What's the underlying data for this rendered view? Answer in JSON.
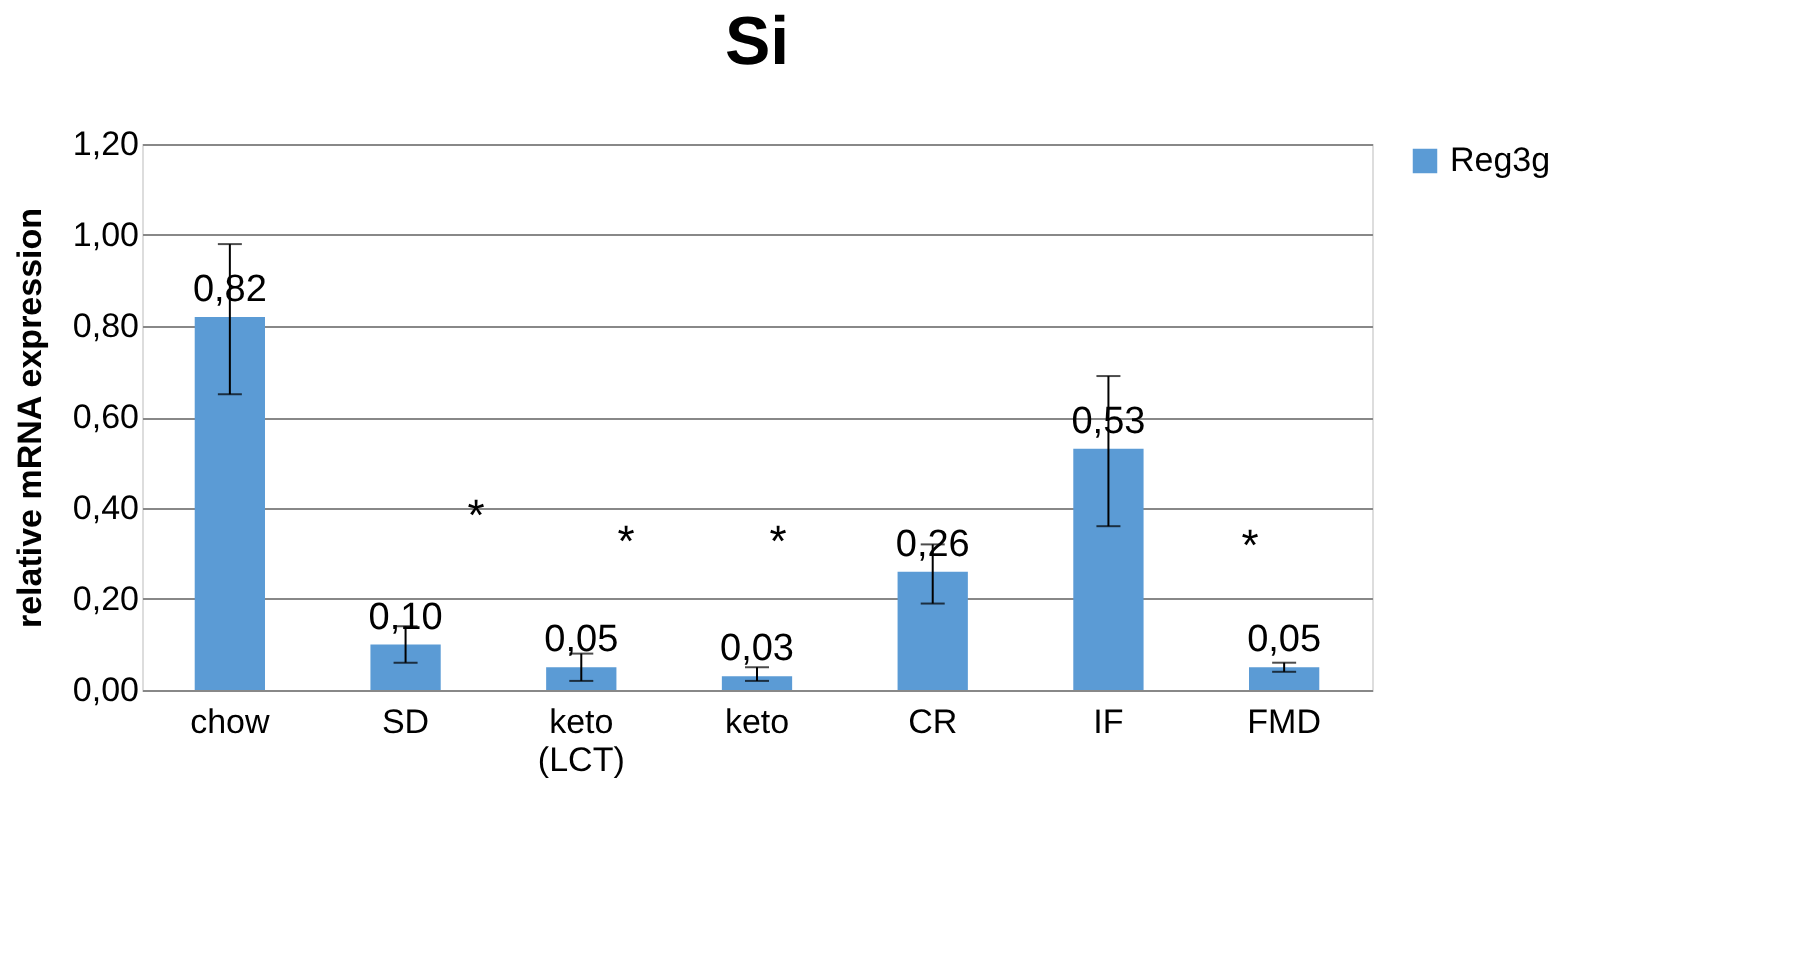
{
  "chart_data": {
    "type": "bar",
    "title": "Si",
    "ylabel": "relative mRNA expression",
    "categories": [
      "chow",
      "SD",
      "keto\n(LCT)",
      "keto",
      "CR",
      "IF",
      "FMD"
    ],
    "series": [
      {
        "name": "Reg3g",
        "color": "#5b9bd5",
        "values": [
          0.82,
          0.1,
          0.05,
          0.03,
          0.26,
          0.53,
          0.05
        ],
        "errors": [
          [
            0.65,
            0.98
          ],
          [
            0.06,
            0.14
          ],
          [
            0.02,
            0.08
          ],
          [
            0.02,
            0.05
          ],
          [
            0.19,
            0.32
          ],
          [
            0.36,
            0.69
          ],
          [
            0.04,
            0.06
          ]
        ],
        "value_labels": [
          "0,82",
          "0,10",
          "0,05",
          "0,03",
          "0,26",
          "0,53",
          "0,05"
        ]
      }
    ],
    "annotations": [
      "*",
      "*",
      "*",
      "*"
    ],
    "ylim": [
      0,
      1.2
    ],
    "yticks": [
      {
        "value": 0,
        "label": "0,00"
      },
      {
        "value": 0.2,
        "label": "0,20"
      },
      {
        "value": 0.4,
        "label": "0,40"
      },
      {
        "value": 0.6,
        "label": "0,60"
      },
      {
        "value": 0.8,
        "label": "0,80"
      },
      {
        "value": 1.0,
        "label": "1,00"
      },
      {
        "value": 1.2,
        "label": "1,20"
      }
    ],
    "grid": "y",
    "legend": "right"
  }
}
